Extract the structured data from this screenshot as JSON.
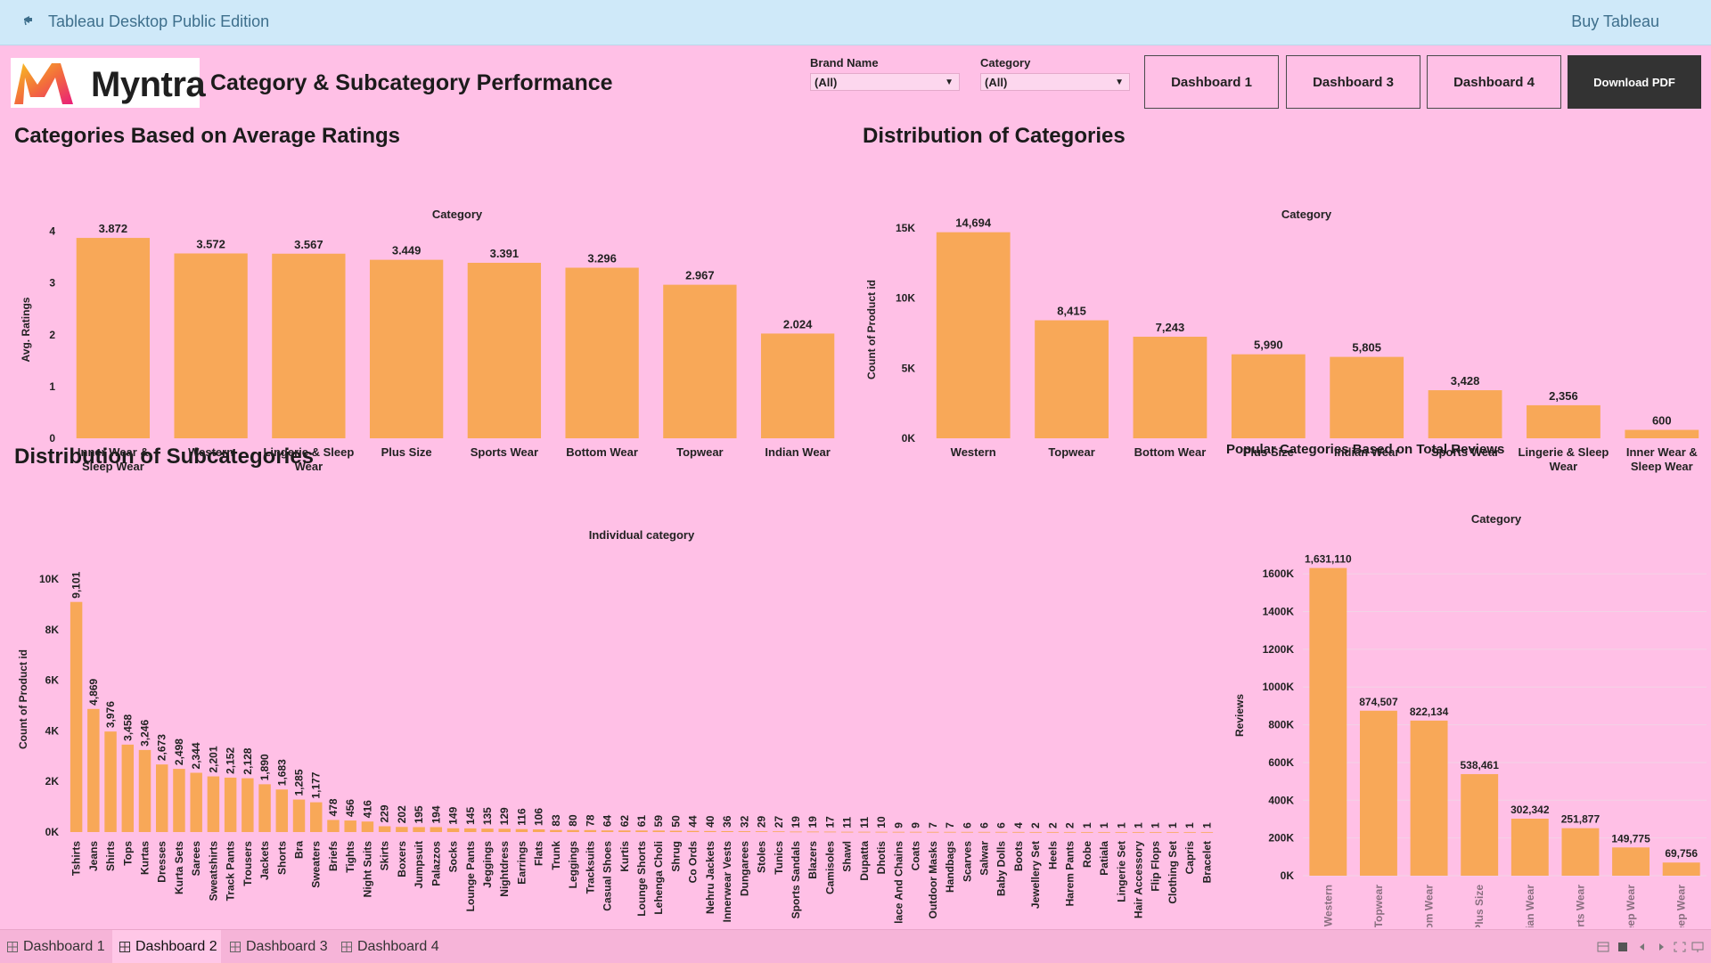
{
  "app": {
    "title": "Tableau Desktop Public Edition",
    "buy_label": "Buy Tableau"
  },
  "header": {
    "logo_text": "Myntra",
    "title": "Category & Subcategory Performance",
    "filters": [
      {
        "label": "Brand Name",
        "value": "(All)"
      },
      {
        "label": "Category",
        "value": "(All)"
      }
    ],
    "buttons": [
      "Dashboard 1",
      "Dashboard 3",
      "Dashboard 4",
      "Download PDF"
    ]
  },
  "tabs": [
    "Dashboard 1",
    "Dashboard 2",
    "Dashboard 3",
    "Dashboard 4"
  ],
  "active_tab": "Dashboard 2",
  "colors": {
    "bar": "#f8a858",
    "background": "#ffc0e6",
    "topbar": "#cfe9f9"
  },
  "chart_data": [
    {
      "type": "bar",
      "title": "Categories Based on Average Ratings",
      "header": "Category",
      "ylabel": "Avg. Ratings",
      "ylim": [
        0,
        4.2
      ],
      "yticks": [
        0,
        1,
        2,
        3,
        4
      ],
      "ytick_labels": [
        "0",
        "1",
        "2",
        "3",
        "4"
      ],
      "categories": [
        "Inner Wear & Sleep Wear",
        "Western",
        "Lingerie & Sleep Wear",
        "Plus Size",
        "Sports Wear",
        "Bottom Wear",
        "Topwear",
        "Indian Wear"
      ],
      "values": [
        3.872,
        3.572,
        3.567,
        3.449,
        3.391,
        3.296,
        2.967,
        2.024
      ],
      "value_labels": [
        "3.872",
        "3.572",
        "3.567",
        "3.449",
        "3.391",
        "3.296",
        "2.967",
        "2.024"
      ]
    },
    {
      "type": "bar",
      "title": "Distribution of Categories",
      "header": "Category",
      "ylabel": "Count of Product id",
      "ylim": [
        0,
        15500
      ],
      "yticks": [
        0,
        5000,
        10000,
        15000
      ],
      "ytick_labels": [
        "0K",
        "5K",
        "10K",
        "15K"
      ],
      "categories": [
        "Western",
        "Topwear",
        "Bottom Wear",
        "Plus Size",
        "Indian Wear",
        "Sports Wear",
        "Lingerie & Sleep Wear",
        "Inner Wear & Sleep Wear"
      ],
      "values": [
        14694,
        8415,
        7243,
        5990,
        5805,
        3428,
        2356,
        600
      ],
      "value_labels": [
        "14,694",
        "8,415",
        "7,243",
        "5,990",
        "5,805",
        "3,428",
        "2,356",
        "600"
      ]
    },
    {
      "type": "bar",
      "title": "Distribution of Subcategories",
      "header": "Individual category",
      "ylabel": "Count of Product id",
      "ylim": [
        0,
        10500
      ],
      "yticks": [
        0,
        2000,
        4000,
        6000,
        8000,
        10000
      ],
      "ytick_labels": [
        "0K",
        "2K",
        "4K",
        "6K",
        "8K",
        "10K"
      ],
      "categories": [
        "Tshirts",
        "Jeans",
        "Shirts",
        "Tops",
        "Kurtas",
        "Dresses",
        "Kurta Sets",
        "Sarees",
        "Sweatshirts",
        "Track Pants",
        "Trousers",
        "Jackets",
        "Shorts",
        "Bra",
        "Sweaters",
        "Briefs",
        "Tights",
        "Night Suits",
        "Skirts",
        "Boxers",
        "Jumpsuit",
        "Palazzos",
        "Socks",
        "Lounge Pants",
        "Jeggings",
        "Nightdress",
        "Earrings",
        "Flats",
        "Trunk",
        "Leggings",
        "Tracksuits",
        "Casual Shoes",
        "Kurtis",
        "Lounge Shorts",
        "Lehenga Choli",
        "Shrug",
        "Co Ords",
        "Nehru Jackets",
        "Innerwear Vests",
        "Dungarees",
        "Stoles",
        "Tunics",
        "Sports Sandals",
        "Blazers",
        "Camisoles",
        "Shawl",
        "Dupatta",
        "Dhotis",
        "Necklace And Chains",
        "Coats",
        "Outdoor Masks",
        "Handbags",
        "Scarves",
        "Salwar",
        "Baby Dolls",
        "Boots",
        "Jewellery Set",
        "Heels",
        "Harem Pants",
        "Robe",
        "Patiala",
        "Lingerie Set",
        "Hair Accessory",
        "Flip Flops",
        "Clothing Set",
        "Capris",
        "Bracelet"
      ],
      "values": [
        9101,
        4869,
        3976,
        3458,
        3246,
        2673,
        2498,
        2344,
        2201,
        2152,
        2128,
        1890,
        1683,
        1285,
        1177,
        478,
        456,
        416,
        229,
        202,
        195,
        194,
        149,
        145,
        135,
        129,
        116,
        106,
        83,
        80,
        78,
        64,
        62,
        61,
        59,
        50,
        44,
        40,
        36,
        32,
        29,
        27,
        19,
        19,
        17,
        11,
        11,
        10,
        9,
        9,
        7,
        7,
        6,
        6,
        6,
        4,
        2,
        2,
        2,
        1,
        1,
        1,
        1,
        1,
        1,
        1,
        1
      ],
      "value_labels": [
        "9,101",
        "4,869",
        "3,976",
        "3,458",
        "3,246",
        "2,673",
        "2,498",
        "2,344",
        "2,201",
        "2,152",
        "2,128",
        "1,890",
        "1,683",
        "1,285",
        "1,177",
        "478",
        "456",
        "416",
        "229",
        "202",
        "195",
        "194",
        "149",
        "145",
        "135",
        "129",
        "116",
        "106",
        "83",
        "80",
        "78",
        "64",
        "62",
        "61",
        "59",
        "50",
        "44",
        "40",
        "36",
        "32",
        "29",
        "27",
        "19",
        "19",
        "17",
        "11",
        "11",
        "10",
        "9",
        "9",
        "7",
        "7",
        "6",
        "6",
        "6",
        "4",
        "2",
        "2",
        "2",
        "1",
        "1",
        "1",
        "1",
        "1",
        "1",
        "1",
        "1"
      ]
    },
    {
      "type": "bar",
      "title": "Popular Categories Based on Total Reviews",
      "header": "Category",
      "ylabel": "Reviews",
      "ylim": [
        0,
        1700000
      ],
      "yticks": [
        0,
        200000,
        400000,
        600000,
        800000,
        1000000,
        1200000,
        1400000,
        1600000
      ],
      "ytick_labels": [
        "0K",
        "200K",
        "400K",
        "600K",
        "800K",
        "1000K",
        "1200K",
        "1400K",
        "1600K"
      ],
      "categories": [
        "Western",
        "Topwear",
        "Bottom Wear",
        "Plus Size",
        "Indian Wear",
        "Sports Wear",
        "Lingerie & Sleep Wear",
        "Inner Wear & Sleep Wear"
      ],
      "values": [
        1631110,
        874507,
        822134,
        538461,
        302342,
        251877,
        149775,
        69756
      ],
      "value_labels": [
        "1,631,110",
        "874,507",
        "822,134",
        "538,461",
        "302,342",
        "251,877",
        "149,775",
        "69,756"
      ]
    }
  ]
}
